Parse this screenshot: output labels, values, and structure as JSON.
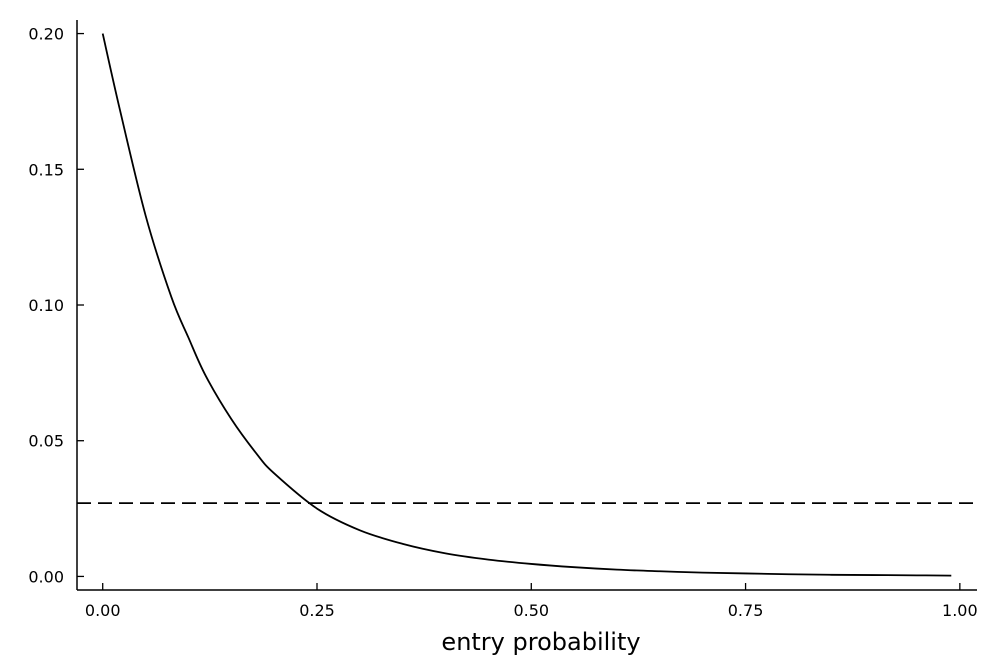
{
  "chart_data": {
    "type": "line",
    "title": "",
    "xlabel": "entry probability",
    "ylabel": "",
    "xlim": [
      -0.03,
      1.02
    ],
    "ylim": [
      -0.005,
      0.205
    ],
    "x_ticks": [
      0.0,
      0.25,
      0.5,
      0.75,
      1.0
    ],
    "x_tick_labels": [
      "0.00",
      "0.25",
      "0.50",
      "0.75",
      "1.00"
    ],
    "y_ticks": [
      0.0,
      0.05,
      0.1,
      0.15,
      0.2
    ],
    "y_tick_labels": [
      "0.00",
      "0.05",
      "0.10",
      "0.15",
      "0.20"
    ],
    "grid": false,
    "legend": "none",
    "series": [
      {
        "style": "solid",
        "color": "#000000",
        "x": [
          0.0,
          0.02,
          0.05,
          0.08,
          0.1,
          0.12,
          0.15,
          0.18,
          0.2,
          0.25,
          0.3,
          0.35,
          0.4,
          0.45,
          0.5,
          0.55,
          0.6,
          0.65,
          0.7,
          0.75,
          0.8,
          0.85,
          0.9,
          0.95,
          0.99
        ],
        "y": [
          0.2,
          0.172,
          0.133,
          0.103,
          0.088,
          0.074,
          0.058,
          0.045,
          0.038,
          0.025,
          0.017,
          0.012,
          0.0085,
          0.0062,
          0.0046,
          0.0034,
          0.0025,
          0.0019,
          0.0014,
          0.0011,
          0.0008,
          0.0006,
          0.0005,
          0.0004,
          0.0003
        ]
      },
      {
        "style": "dashed",
        "color": "#000000",
        "x": [
          -0.03,
          1.02
        ],
        "y": [
          0.027,
          0.027
        ]
      }
    ]
  }
}
